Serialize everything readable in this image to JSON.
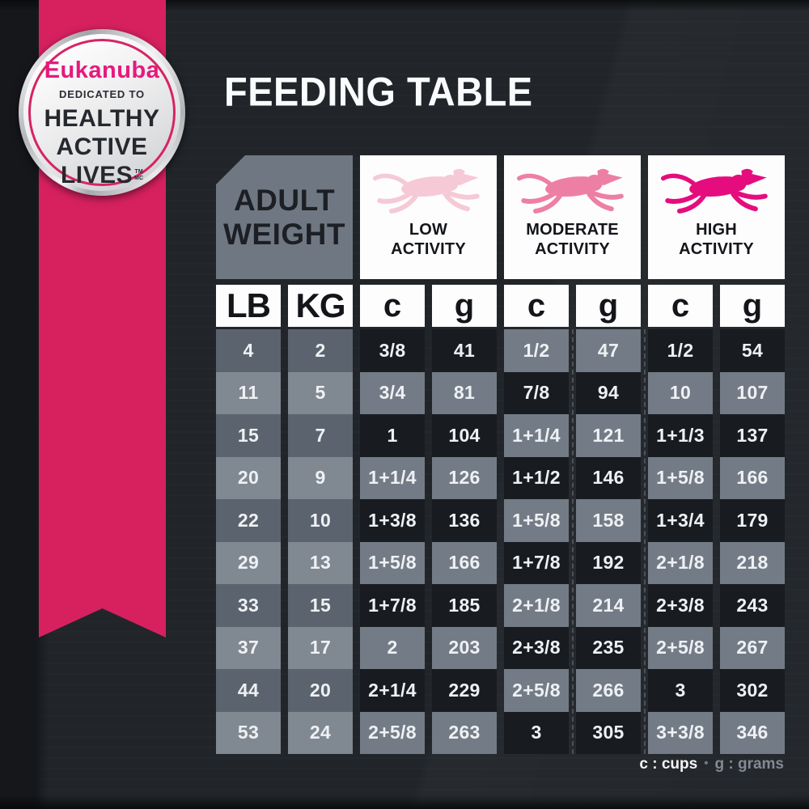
{
  "page": {
    "title": "FEEDING TABLE"
  },
  "badge": {
    "brand": "Eukanuba",
    "dedication": "DEDICATED TO",
    "headline_lines": [
      "HEALTHY",
      "ACTIVE",
      "LIVES"
    ],
    "trademark_top": "TM",
    "trademark_bottom": "MC"
  },
  "table": {
    "corner_header": {
      "line1": "ADULT",
      "line2": "WEIGHT"
    },
    "activity_headers": [
      {
        "line1": "LOW",
        "line2": "ACTIVITY",
        "dog_color": "#f6c9d6"
      },
      {
        "line1": "MODERATE",
        "line2": "ACTIVITY",
        "dog_color": "#ee7fa4"
      },
      {
        "line1": "HIGH",
        "line2": "ACTIVITY",
        "dog_color": "#e50c7e"
      }
    ],
    "unit_headers": [
      "LB",
      "KG",
      "c",
      "g",
      "c",
      "g",
      "c",
      "g"
    ],
    "rows": [
      [
        "4",
        "2",
        "3/8",
        "41",
        "1/2",
        "47",
        "1/2",
        "54"
      ],
      [
        "11",
        "5",
        "3/4",
        "81",
        "7/8",
        "94",
        "10",
        "107"
      ],
      [
        "15",
        "7",
        "1",
        "104",
        "1+1/4",
        "121",
        "1+1/3",
        "137"
      ],
      [
        "20",
        "9",
        "1+1/4",
        "126",
        "1+1/2",
        "146",
        "1+5/8",
        "166"
      ],
      [
        "22",
        "10",
        "1+3/8",
        "136",
        "1+5/8",
        "158",
        "1+3/4",
        "179"
      ],
      [
        "29",
        "13",
        "1+5/8",
        "166",
        "1+7/8",
        "192",
        "2+1/8",
        "218"
      ],
      [
        "33",
        "15",
        "1+7/8",
        "185",
        "2+1/8",
        "214",
        "2+3/8",
        "243"
      ],
      [
        "37",
        "17",
        "2",
        "203",
        "2+3/8",
        "235",
        "2+5/8",
        "267"
      ],
      [
        "44",
        "20",
        "2+1/4",
        "229",
        "2+5/8",
        "266",
        "3",
        "302"
      ],
      [
        "53",
        "24",
        "2+5/8",
        "263",
        "3",
        "305",
        "3+3/8",
        "346"
      ]
    ]
  },
  "legend": {
    "cups_label": "c : cups",
    "separator": "•",
    "grams_label": "g : grams"
  },
  "colors": {
    "background": "#212529",
    "ribbon_pink": "#d7215f",
    "brand_pink": "#e6197c",
    "cell_dark": "#181c21",
    "cell_slate": "#737c86",
    "weight_col_dark": "#5b646e",
    "weight_col_light": "#808891",
    "header_gray": "#6f7882",
    "header_white": "#fdfdfe",
    "dog_low": "#f6c9d6",
    "dog_moderate": "#ee7fa4",
    "dog_high": "#e50c7e"
  }
}
